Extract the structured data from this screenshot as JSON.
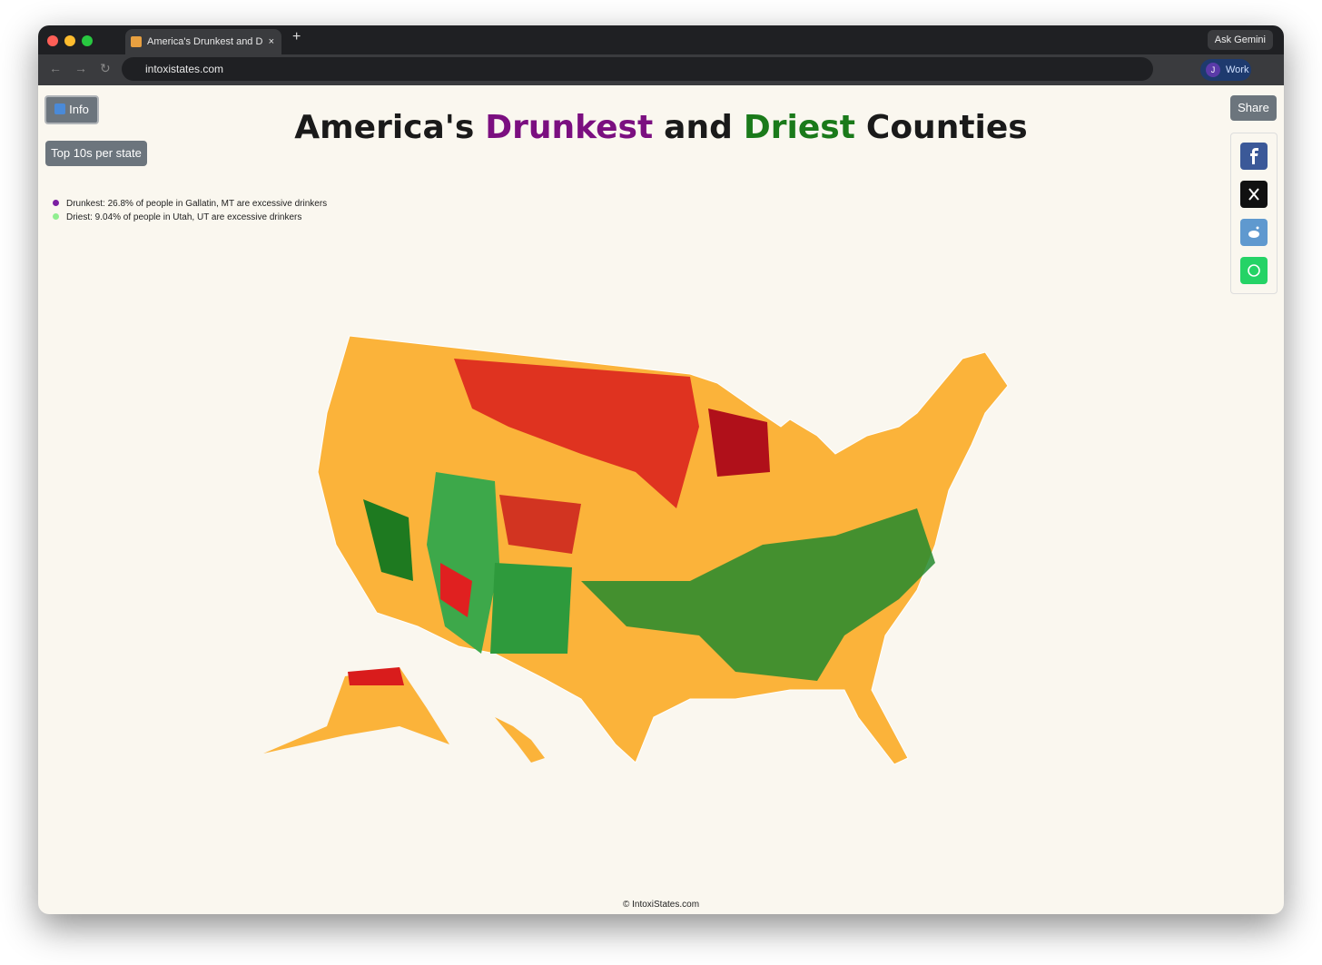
{
  "browser": {
    "tab_title": "America's Drunkest and Dries",
    "ask_gemini": "Ask Gemini",
    "url": "intoxistates.com",
    "profile_initial": "J",
    "profile_name": "Work"
  },
  "page": {
    "info_button": "Info",
    "top10_button": "Top 10s per state",
    "share_button": "Share",
    "title": [
      "America's",
      "Drunkest",
      "and",
      "Driest",
      "Counties"
    ],
    "legend": [
      "Drunkest: 26.8% of people in Gallatin, MT are excessive drinkers",
      "Driest: 9.04% of people in Utah, UT are excessive drinkers"
    ],
    "footer": "© IntoxiStates.com"
  }
}
